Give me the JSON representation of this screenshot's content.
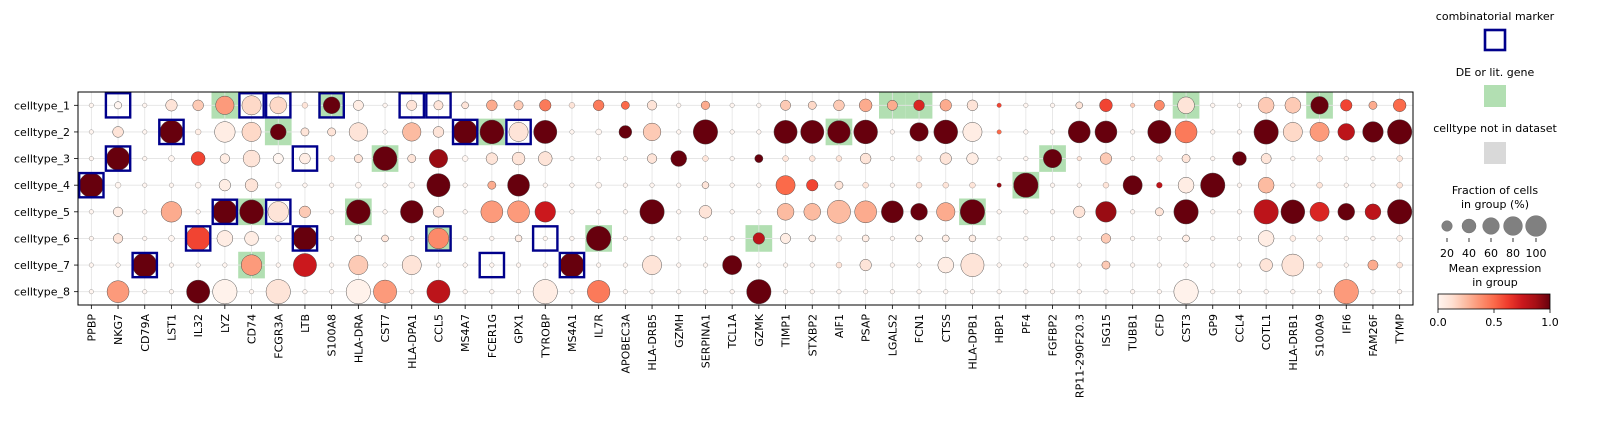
{
  "chart_data": {
    "type": "dotplot",
    "cell_types": [
      "celltype_1",
      "celltype_2",
      "celltype_3",
      "celltype_4",
      "celltype_5",
      "celltype_6",
      "celltype_7",
      "celltype_8"
    ],
    "genes": [
      "PPBP",
      "NKG7",
      "CD79A",
      "LST1",
      "IL32",
      "LYZ",
      "CD74",
      "FCGR3A",
      "LTB",
      "S100A8",
      "HLA-DRA",
      "CST7",
      "HLA-DPA1",
      "CCL5",
      "MS4A7",
      "FCER1G",
      "GPX1",
      "TYROBP",
      "MS4A1",
      "IL7R",
      "APOBEC3A",
      "HLA-DRB5",
      "GZMH",
      "SERPINA1",
      "TCL1A",
      "GZMK",
      "TIMP1",
      "STXBP2",
      "AIF1",
      "PSAP",
      "LGALS2",
      "FCN1",
      "CTSS",
      "HLA-DPB1",
      "HBP1",
      "PF4",
      "FGFBP2",
      "RP11-290F20.3",
      "ISG15",
      "TUBB1",
      "CFD",
      "CST3",
      "GP9",
      "CCL4",
      "COTL1",
      "HLA-DRB1",
      "S100A9",
      "IFI6",
      "FAM26F",
      "TYMP"
    ],
    "fraction": [
      [
        2,
        7,
        2,
        20,
        17,
        55,
        60,
        45,
        4,
        45,
        15,
        2,
        15,
        12,
        6,
        17,
        12,
        20,
        4,
        17,
        9,
        13,
        2,
        10,
        2,
        2,
        15,
        9,
        17,
        25,
        15,
        17,
        20,
        17,
        2,
        2,
        2,
        6,
        25,
        2,
        15,
        45,
        2,
        2,
        40,
        40,
        50,
        20,
        9,
        25
      ],
      [
        2,
        17,
        2,
        90,
        4,
        70,
        60,
        40,
        9,
        9,
        55,
        2,
        55,
        17,
        100,
        95,
        60,
        90,
        2,
        4,
        25,
        50,
        2,
        100,
        2,
        2,
        90,
        90,
        85,
        95,
        2,
        55,
        95,
        60,
        2,
        2,
        2,
        80,
        80,
        2,
        90,
        80,
        2,
        2,
        100,
        60,
        60,
        45,
        70,
        100
      ],
      [
        2,
        90,
        2,
        4,
        30,
        13,
        45,
        15,
        17,
        4,
        9,
        95,
        9,
        55,
        4,
        20,
        25,
        30,
        2,
        2,
        2,
        13,
        40,
        4,
        2,
        9,
        4,
        4,
        4,
        17,
        2,
        4,
        20,
        20,
        2,
        2,
        55,
        2,
        20,
        2,
        4,
        9,
        2,
        30,
        15,
        2,
        4,
        2,
        2,
        4
      ],
      [
        100,
        4,
        2,
        2,
        4,
        20,
        25,
        4,
        2,
        2,
        4,
        2,
        4,
        90,
        2,
        9,
        80,
        2,
        2,
        4,
        2,
        2,
        2,
        6,
        2,
        2,
        60,
        20,
        9,
        4,
        2,
        4,
        4,
        4,
        2,
        100,
        2,
        2,
        4,
        60,
        4,
        40,
        100,
        2,
        40,
        2,
        4,
        2,
        2,
        4
      ],
      [
        2,
        13,
        2,
        70,
        2,
        100,
        95,
        70,
        20,
        2,
        95,
        2,
        85,
        17,
        2,
        80,
        80,
        70,
        2,
        2,
        2,
        100,
        2,
        25,
        2,
        2,
        45,
        45,
        90,
        80,
        80,
        45,
        55,
        100,
        2,
        2,
        2,
        20,
        70,
        2,
        9,
        100,
        2,
        2,
        100,
        95,
        60,
        45,
        40,
        100
      ],
      [
        2,
        13,
        2,
        4,
        100,
        40,
        30,
        4,
        100,
        2,
        6,
        6,
        2,
        70,
        2,
        2,
        6,
        2,
        2,
        100,
        2,
        2,
        2,
        2,
        2,
        20,
        15,
        6,
        4,
        6,
        2,
        6,
        6,
        6,
        2,
        2,
        2,
        2,
        13,
        2,
        2,
        6,
        2,
        2,
        40,
        4,
        4,
        2,
        2,
        4
      ],
      [
        2,
        2,
        100,
        2,
        2,
        2,
        70,
        2,
        90,
        2,
        60,
        2,
        60,
        2,
        2,
        2,
        2,
        2,
        100,
        2,
        2,
        60,
        2,
        2,
        60,
        2,
        2,
        2,
        4,
        20,
        2,
        2,
        40,
        90,
        2,
        2,
        2,
        2,
        9,
        2,
        2,
        2,
        2,
        2,
        25,
        80,
        4,
        2,
        15,
        4
      ],
      [
        2,
        80,
        2,
        2,
        90,
        100,
        2,
        100,
        2,
        2,
        100,
        90,
        2,
        90,
        2,
        2,
        2,
        100,
        2,
        85,
        2,
        2,
        2,
        2,
        2,
        100,
        2,
        2,
        2,
        2,
        2,
        2,
        2,
        2,
        2,
        2,
        2,
        2,
        2,
        2,
        2,
        100,
        2,
        2,
        2,
        2,
        2,
        100,
        2,
        2
      ]
    ],
    "expression": [
      [
        0.0,
        0.0,
        0.0,
        0.1,
        0.2,
        0.35,
        0.15,
        0.15,
        0.1,
        1.0,
        0.05,
        0.0,
        0.1,
        0.1,
        0.1,
        0.3,
        0.2,
        0.45,
        0.1,
        0.45,
        0.5,
        0.1,
        0.0,
        0.3,
        0.0,
        0.0,
        0.2,
        0.15,
        0.2,
        0.3,
        0.3,
        0.7,
        0.3,
        0.1,
        0.6,
        0.0,
        0.0,
        0.1,
        0.6,
        0.2,
        0.4,
        0.1,
        0.0,
        0.0,
        0.2,
        0.2,
        1.0,
        0.6,
        0.3,
        0.5
      ],
      [
        0.0,
        0.1,
        0.0,
        1.0,
        0.05,
        0.05,
        0.15,
        1.0,
        0.1,
        0.1,
        0.1,
        0.0,
        0.25,
        0.1,
        1.0,
        1.0,
        0.1,
        1.0,
        0.0,
        0.0,
        1.0,
        0.2,
        0.0,
        1.0,
        0.0,
        0.0,
        1.0,
        1.0,
        1.0,
        1.0,
        0.0,
        1.0,
        1.0,
        0.05,
        0.5,
        0.0,
        0.0,
        1.0,
        1.0,
        0.0,
        1.0,
        0.45,
        0.0,
        0.0,
        1.0,
        0.15,
        0.35,
        0.8,
        1.0,
        1.0
      ],
      [
        0.0,
        1.0,
        0.0,
        0.0,
        0.6,
        0.05,
        0.1,
        0.0,
        0.05,
        0.1,
        0.1,
        1.0,
        0.1,
        0.9,
        0.0,
        0.1,
        0.1,
        0.1,
        0.0,
        0.0,
        0.0,
        0.1,
        1.0,
        0.1,
        0.0,
        1.0,
        0.1,
        0.1,
        0.1,
        0.1,
        0.0,
        0.1,
        0.1,
        0.05,
        0.0,
        0.0,
        1.0,
        0.1,
        0.2,
        0.0,
        0.1,
        0.1,
        0.0,
        1.0,
        0.1,
        0.0,
        0.1,
        0.0,
        0.0,
        0.1
      ],
      [
        1.0,
        0.0,
        0.0,
        0.0,
        0.0,
        0.05,
        0.1,
        0.0,
        0.0,
        0.0,
        0.0,
        0.0,
        0.0,
        1.0,
        0.0,
        0.3,
        1.0,
        0.0,
        0.0,
        0.0,
        0.0,
        0.0,
        0.0,
        0.1,
        0.0,
        0.0,
        0.5,
        0.6,
        0.1,
        0.1,
        0.0,
        0.1,
        0.1,
        0.1,
        0.9,
        1.0,
        0.0,
        0.0,
        0.1,
        1.0,
        0.8,
        0.05,
        1.0,
        0.0,
        0.25,
        0.0,
        0.1,
        0.0,
        0.0,
        0.1
      ],
      [
        0.0,
        0.05,
        0.0,
        0.3,
        0.0,
        1.0,
        1.0,
        0.1,
        0.2,
        0.0,
        1.0,
        0.0,
        1.0,
        0.1,
        0.0,
        0.35,
        0.35,
        0.75,
        0.0,
        0.0,
        0.0,
        1.0,
        0.0,
        0.1,
        0.0,
        0.0,
        0.25,
        0.25,
        0.25,
        0.3,
        1.0,
        1.0,
        0.3,
        1.0,
        0.0,
        0.0,
        0.0,
        0.1,
        0.9,
        0.0,
        0.1,
        1.0,
        0.0,
        0.0,
        0.8,
        1.0,
        0.7,
        1.0,
        0.8,
        1.0
      ],
      [
        0.0,
        0.1,
        0.0,
        0.0,
        0.6,
        0.05,
        0.05,
        0.0,
        1.0,
        0.0,
        0.0,
        0.1,
        0.0,
        0.4,
        0.0,
        0.0,
        0.05,
        0.0,
        0.0,
        1.0,
        0.0,
        0.0,
        0.0,
        0.0,
        0.0,
        0.8,
        0.05,
        0.05,
        0.05,
        0.05,
        0.0,
        0.05,
        0.05,
        0.05,
        0.0,
        0.0,
        0.0,
        0.0,
        0.2,
        0.0,
        0.0,
        0.05,
        0.0,
        0.0,
        0.05,
        0.05,
        0.05,
        0.0,
        0.0,
        0.05
      ],
      [
        0.0,
        0.0,
        1.0,
        0.0,
        0.0,
        0.0,
        0.35,
        0.0,
        0.75,
        0.0,
        0.2,
        0.0,
        0.1,
        0.0,
        0.0,
        0.0,
        0.0,
        0.0,
        1.0,
        0.0,
        0.0,
        0.1,
        0.0,
        0.0,
        1.0,
        0.0,
        0.0,
        0.0,
        0.1,
        0.1,
        0.0,
        0.0,
        0.05,
        0.1,
        0.0,
        0.0,
        0.0,
        0.0,
        0.2,
        0.0,
        0.0,
        0.0,
        0.0,
        0.0,
        0.1,
        0.1,
        0.1,
        0.0,
        0.3,
        0.1
      ],
      [
        0.0,
        0.35,
        0.0,
        0.0,
        1.0,
        0.02,
        0.0,
        0.1,
        0.0,
        0.0,
        0.02,
        0.35,
        0.0,
        0.8,
        0.0,
        0.0,
        0.0,
        0.05,
        0.0,
        0.45,
        0.0,
        0.0,
        0.0,
        0.0,
        0.0,
        1.0,
        0.0,
        0.0,
        0.0,
        0.0,
        0.0,
        0.0,
        0.0,
        0.0,
        0.0,
        0.0,
        0.0,
        0.0,
        0.0,
        0.0,
        0.0,
        0.02,
        0.0,
        0.0,
        0.0,
        0.0,
        0.0,
        0.35,
        0.0,
        0.0
      ]
    ],
    "de_or_lit": [
      [
        0,
        5
      ],
      [
        0,
        9
      ],
      [
        0,
        30
      ],
      [
        0,
        31
      ],
      [
        0,
        41
      ],
      [
        0,
        46
      ],
      [
        1,
        7
      ],
      [
        1,
        15
      ],
      [
        1,
        28
      ],
      [
        2,
        11
      ],
      [
        2,
        36
      ],
      [
        3,
        35
      ],
      [
        4,
        6
      ],
      [
        4,
        10
      ],
      [
        4,
        33
      ],
      [
        5,
        13
      ],
      [
        5,
        19
      ],
      [
        5,
        25
      ],
      [
        6,
        6
      ]
    ],
    "combinatorial": [
      [
        0,
        1
      ],
      [
        0,
        6
      ],
      [
        0,
        7
      ],
      [
        0,
        9
      ],
      [
        0,
        12
      ],
      [
        0,
        13
      ],
      [
        1,
        3
      ],
      [
        1,
        14
      ],
      [
        1,
        16
      ],
      [
        2,
        1
      ],
      [
        2,
        8
      ],
      [
        3,
        0
      ],
      [
        4,
        5
      ],
      [
        4,
        7
      ],
      [
        5,
        4
      ],
      [
        5,
        8
      ],
      [
        5,
        13
      ],
      [
        5,
        17
      ],
      [
        6,
        2
      ],
      [
        6,
        15
      ],
      [
        6,
        18
      ]
    ],
    "legend": {
      "combinatorial_title": "combinatorial marker",
      "de_title": "DE or lit. gene",
      "notin_title": "celltype not in dataset",
      "size_title_1": "Fraction of cells",
      "size_title_2": "in group (%)",
      "size_values": [
        20,
        40,
        60,
        80,
        100
      ],
      "color_title_1": "Mean expression",
      "color_title_2": "in group",
      "color_ticks": [
        "0.0",
        "0.5",
        "1.0"
      ]
    },
    "colors": {
      "combinatorial_box": "#00008b",
      "de_fill": "#b2dfb2",
      "notin_fill": "#d9d9d9",
      "cmap_low": "#fff5f0",
      "cmap_high": "#67000d"
    }
  }
}
